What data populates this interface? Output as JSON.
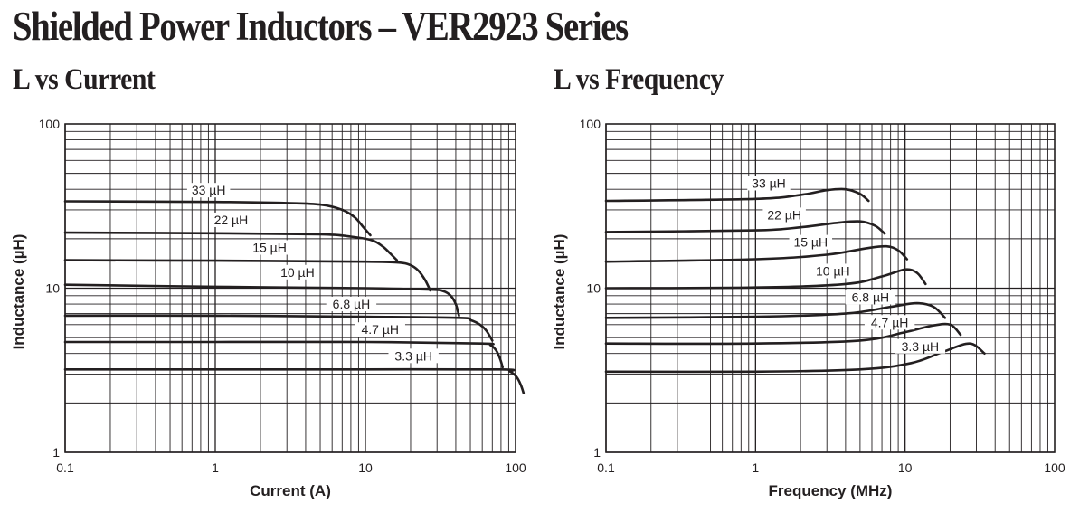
{
  "page": {
    "title": "Shielded Power Inductors – VER2923 Series"
  },
  "chart_data": [
    {
      "type": "line",
      "title": "L vs Current",
      "xlabel": "Current (A)",
      "ylabel": "Inductance (µH)",
      "xscale": "log",
      "yscale": "log",
      "xlim": [
        0.1,
        100
      ],
      "ylim": [
        1,
        100
      ],
      "grid": true,
      "x_ticks": [
        "0.1",
        "1",
        "10",
        "100"
      ],
      "y_ticks": [
        "1",
        "10",
        "100"
      ],
      "series": [
        {
          "name": "33 µH",
          "x": [
            0.1,
            1,
            3,
            5,
            7,
            8.5,
            9.7,
            10.8
          ],
          "y": [
            33.8,
            33.5,
            33,
            32.3,
            30,
            27,
            23.5,
            21
          ]
        },
        {
          "name": "22 µH",
          "x": [
            0.1,
            1,
            5,
            8,
            11,
            13,
            14.7,
            16.2
          ],
          "y": [
            21.8,
            21.6,
            21.3,
            20.6,
            19.6,
            18,
            16.2,
            14.8
          ]
        },
        {
          "name": "15 µH",
          "x": [
            0.1,
            1,
            10,
            17,
            20,
            22.5,
            25,
            27
          ],
          "y": [
            14.8,
            14.7,
            14.5,
            14.3,
            13.8,
            12.8,
            11.2,
            9.7
          ]
        },
        {
          "name": "10 µH",
          "x": [
            0.1,
            1,
            10,
            27,
            33,
            37,
            40,
            42
          ],
          "y": [
            10.5,
            10.2,
            10,
            9.8,
            9.6,
            9,
            8,
            6.8
          ]
        },
        {
          "name": "6.8 µH",
          "x": [
            0.1,
            1,
            10,
            42,
            50,
            58,
            64,
            70
          ],
          "y": [
            6.8,
            6.8,
            6.7,
            6.6,
            6.4,
            6,
            5.5,
            4.8
          ]
        },
        {
          "name": "4.7 µH",
          "x": [
            0.1,
            1,
            10,
            60,
            68,
            74,
            79,
            82
          ],
          "y": [
            4.7,
            4.7,
            4.7,
            4.6,
            4.5,
            4.2,
            3.7,
            3.3
          ]
        },
        {
          "name": "3.3 µH",
          "x": [
            0.1,
            1,
            10,
            80,
            92,
            101,
            108,
            113
          ],
          "y": [
            3.2,
            3.2,
            3.2,
            3.2,
            3.1,
            2.9,
            2.6,
            2.3
          ]
        }
      ]
    },
    {
      "type": "line",
      "title": "L vs Frequency",
      "xlabel": "Frequency (MHz)",
      "ylabel": "Inductance (µH)",
      "xscale": "log",
      "yscale": "log",
      "xlim": [
        0.1,
        100
      ],
      "ylim": [
        1,
        100
      ],
      "grid": true,
      "x_ticks": [
        "0.1",
        "1",
        "10",
        "100"
      ],
      "y_ticks": [
        "1",
        "10",
        "100"
      ],
      "series": [
        {
          "name": "33 µH",
          "x": [
            0.1,
            1,
            2,
            3,
            4,
            5,
            5.7
          ],
          "y": [
            34,
            35,
            37,
            39.5,
            40,
            37.5,
            34
          ]
        },
        {
          "name": "22 µH",
          "x": [
            0.1,
            1,
            2,
            3.5,
            5,
            6.3,
            7.3
          ],
          "y": [
            22,
            22.5,
            23.5,
            25,
            25.5,
            24,
            21.5
          ]
        },
        {
          "name": "15 µH",
          "x": [
            0.1,
            1,
            3,
            5.5,
            7.5,
            9,
            10.3
          ],
          "y": [
            14.5,
            15,
            16,
            17.5,
            18,
            17,
            15
          ]
        },
        {
          "name": "10 µH",
          "x": [
            0.1,
            1,
            4,
            7,
            10,
            12,
            13.7
          ],
          "y": [
            10,
            10.1,
            10.6,
            11.8,
            13,
            12.4,
            10.6
          ]
        },
        {
          "name": "6.8 µH",
          "x": [
            0.1,
            1,
            4,
            8,
            12,
            15.5,
            18.5
          ],
          "y": [
            6.6,
            6.7,
            7,
            7.7,
            8.1,
            7.7,
            6.6
          ]
        },
        {
          "name": "4.7 µH",
          "x": [
            0.1,
            1,
            5,
            10,
            15,
            20,
            23.5
          ],
          "y": [
            4.6,
            4.6,
            4.8,
            5.4,
            5.9,
            6,
            5.2
          ]
        },
        {
          "name": "3.3 µH",
          "x": [
            0.1,
            1,
            5,
            11,
            18,
            27,
            34
          ],
          "y": [
            3.1,
            3.1,
            3.2,
            3.5,
            4.1,
            4.6,
            4
          ]
        }
      ]
    }
  ]
}
